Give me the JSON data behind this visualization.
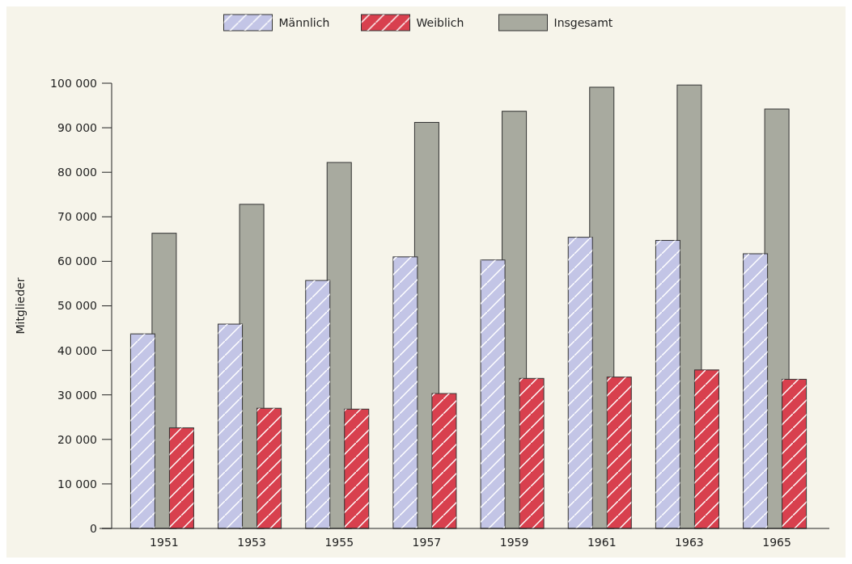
{
  "chart_data": {
    "type": "bar",
    "ylabel": "Mitglieder",
    "categories": [
      "1951",
      "1953",
      "1955",
      "1957",
      "1959",
      "1961",
      "1963",
      "1965"
    ],
    "series": [
      {
        "name": "Männlich",
        "color": "#c3c5e6",
        "values": [
          43700,
          45900,
          55700,
          61000,
          60300,
          65400,
          64700,
          61700
        ]
      },
      {
        "name": "Weiblich",
        "color": "#d8404e",
        "values": [
          22600,
          27000,
          26800,
          30300,
          33700,
          34000,
          35600,
          33500
        ]
      },
      {
        "name": "Insgesamt",
        "color": "#a8aa9f",
        "values": [
          66300,
          72800,
          82200,
          91200,
          93700,
          99100,
          99600,
          94200
        ]
      }
    ],
    "ylim": [
      0,
      100000
    ],
    "yticks": [
      {
        "value": 0,
        "label": "0"
      },
      {
        "value": 10000,
        "label": "10 000"
      },
      {
        "value": 20000,
        "label": "20 000"
      },
      {
        "value": 30000,
        "label": "30 000"
      },
      {
        "value": 40000,
        "label": "40 000"
      },
      {
        "value": 50000,
        "label": "50 000"
      },
      {
        "value": 60000,
        "label": "60 000"
      },
      {
        "value": 70000,
        "label": "70 000"
      },
      {
        "value": 80000,
        "label": "80 000"
      },
      {
        "value": 90000,
        "label": "90 000"
      },
      {
        "value": 100000,
        "label": "100 000"
      }
    ],
    "grid": false,
    "legend": "top"
  }
}
